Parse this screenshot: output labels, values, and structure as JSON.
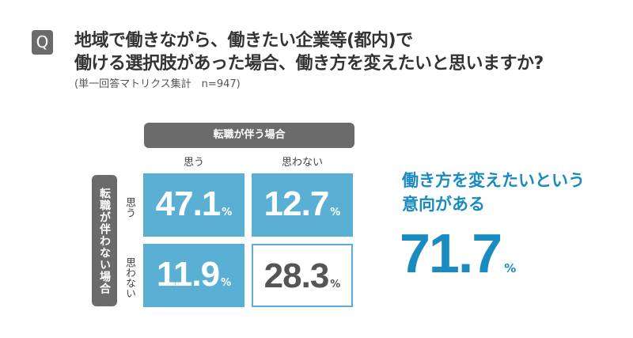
{
  "question": {
    "badge": "Q",
    "line1": "地域で働きながら、働きたい企業等(都内)で",
    "line2": "働ける選択肢があった場合、働き方を変えたいと思いますか?",
    "note": "(単一回答マトリクス集計　n=947)"
  },
  "matrix": {
    "col_header": "転職が伴う場合",
    "row_header": "転職が伴わない場合",
    "col_labels": [
      "思う",
      "思わない"
    ],
    "row_labels": [
      "思う",
      "思わない"
    ],
    "cells": [
      {
        "value": "47.1",
        "unit": "%"
      },
      {
        "value": "12.7",
        "unit": "%"
      },
      {
        "value": "11.9",
        "unit": "%"
      },
      {
        "value": "28.3",
        "unit": "%"
      }
    ]
  },
  "summary": {
    "line1": "働き方を変えたいという",
    "line2": "意向がある",
    "value": "71.7",
    "unit": "%"
  },
  "colors": {
    "accent": "#5aafd4",
    "text_accent": "#1a8bc0",
    "header": "#6b6b6b"
  }
}
